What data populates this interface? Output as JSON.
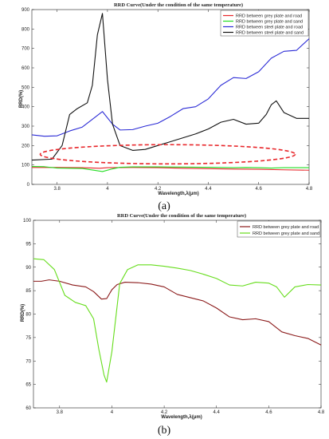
{
  "chart_data": [
    {
      "type": "line",
      "panel_label": "(a)",
      "title": "RRD Curve(Under the condition of the same temperature)",
      "xlabel": "Wavelength,λ(μm)",
      "ylabel": "RRD(%)",
      "xlim": [
        3.7,
        4.8
      ],
      "ylim": [
        0,
        900
      ],
      "xticks": [
        3.8,
        4.0,
        4.2,
        4.4,
        4.6,
        4.8
      ],
      "xtick_labels": [
        "3.8",
        "4",
        "4.2",
        "4.4",
        "4.6",
        "4.8"
      ],
      "yticks": [
        0,
        100,
        200,
        300,
        400,
        500,
        600,
        700,
        800,
        900
      ],
      "legend_position": "top-right",
      "annotation": "red dashed ellipse around the low curves (approx. y 100-200)",
      "series": [
        {
          "name": "RRD between grey plate and road",
          "color": "#e8262a",
          "x": [
            3.7,
            3.8,
            3.9,
            3.97,
            4.0,
            4.1,
            4.2,
            4.3,
            4.4,
            4.5,
            4.6,
            4.7,
            4.8
          ],
          "y": [
            87,
            87,
            86,
            83,
            86,
            87,
            86,
            83,
            81,
            79,
            78,
            75,
            73
          ]
        },
        {
          "name": "RRD between grey plate and sand",
          "color": "#22dd22",
          "x": [
            3.7,
            3.75,
            3.8,
            3.85,
            3.9,
            3.95,
            3.98,
            4.02,
            4.05,
            4.1,
            4.2,
            4.3,
            4.4,
            4.5,
            4.55,
            4.6,
            4.65,
            4.7,
            4.8
          ],
          "y": [
            92,
            91,
            84,
            83,
            82,
            72,
            66,
            80,
            88,
            90,
            90,
            89,
            88,
            86,
            87,
            86,
            84,
            86,
            86
          ]
        },
        {
          "name": "RRD between steel plate and road",
          "color": "#2b2bd6",
          "x": [
            3.7,
            3.75,
            3.8,
            3.85,
            3.9,
            3.95,
            3.98,
            4.02,
            4.05,
            4.1,
            4.15,
            4.2,
            4.25,
            4.3,
            4.35,
            4.4,
            4.45,
            4.5,
            4.55,
            4.6,
            4.65,
            4.7,
            4.75,
            4.8
          ],
          "y": [
            255,
            248,
            250,
            275,
            295,
            345,
            375,
            310,
            280,
            282,
            300,
            315,
            350,
            390,
            400,
            440,
            510,
            550,
            545,
            580,
            650,
            685,
            690,
            750
          ]
        },
        {
          "name": "RRD between steel plate and sand",
          "color": "#111111",
          "x": [
            3.7,
            3.78,
            3.82,
            3.85,
            3.88,
            3.92,
            3.94,
            3.96,
            3.98,
            4.0,
            4.02,
            4.05,
            4.1,
            4.15,
            4.2,
            4.25,
            4.3,
            4.35,
            4.4,
            4.45,
            4.5,
            4.55,
            4.6,
            4.63,
            4.65,
            4.67,
            4.7,
            4.75,
            4.8
          ],
          "y": [
            125,
            130,
            200,
            360,
            390,
            420,
            510,
            770,
            880,
            540,
            310,
            200,
            175,
            180,
            200,
            220,
            240,
            260,
            285,
            320,
            335,
            310,
            315,
            360,
            410,
            430,
            370,
            340,
            340
          ]
        }
      ]
    },
    {
      "type": "line",
      "panel_label": "(b)",
      "title": "RRD Curve(Under the condition of the same temperature)",
      "xlabel": "Wavelength,λ(μm)",
      "ylabel": "RRD(%)",
      "xlim": [
        3.7,
        4.8
      ],
      "ylim": [
        60,
        100
      ],
      "xticks": [
        3.8,
        4.0,
        4.2,
        4.4,
        4.6,
        4.8
      ],
      "xtick_labels": [
        "3.8",
        "4",
        "4.2",
        "4.4",
        "4.6",
        "4.8"
      ],
      "yticks": [
        60,
        65,
        70,
        75,
        80,
        85,
        90,
        95,
        100
      ],
      "legend_position": "top-right",
      "series": [
        {
          "name": "RRD between grey plate and road",
          "color": "#8b1a1a",
          "x": [
            3.7,
            3.73,
            3.76,
            3.8,
            3.85,
            3.9,
            3.93,
            3.96,
            3.98,
            4.0,
            4.02,
            4.05,
            4.1,
            4.15,
            4.2,
            4.25,
            4.3,
            4.35,
            4.4,
            4.45,
            4.5,
            4.55,
            4.6,
            4.65,
            4.7,
            4.75,
            4.8
          ],
          "y": [
            87,
            87,
            87.3,
            87,
            86.2,
            85.8,
            84.8,
            83.2,
            83.3,
            85.2,
            86.3,
            86.8,
            86.7,
            86.4,
            85.8,
            84.2,
            83.5,
            82.8,
            81.3,
            79.4,
            78.8,
            79.0,
            78.4,
            76.2,
            75.4,
            74.8,
            73.4
          ]
        },
        {
          "name": "RRD between grey plate and sand",
          "color": "#66dd1c",
          "x": [
            3.7,
            3.74,
            3.78,
            3.82,
            3.86,
            3.9,
            3.93,
            3.95,
            3.97,
            3.98,
            4.0,
            4.03,
            4.06,
            4.1,
            4.15,
            4.2,
            4.25,
            4.3,
            4.35,
            4.4,
            4.45,
            4.5,
            4.55,
            4.6,
            4.63,
            4.66,
            4.7,
            4.75,
            4.8
          ],
          "y": [
            91.8,
            91.6,
            89.5,
            84.0,
            82.5,
            81.8,
            79.0,
            72.5,
            67.0,
            65.5,
            72.0,
            86.5,
            89.5,
            90.5,
            90.5,
            90.2,
            89.8,
            89.3,
            88.5,
            87.6,
            86.2,
            86.0,
            86.8,
            86.6,
            85.8,
            83.6,
            85.8,
            86.3,
            86.2
          ]
        }
      ]
    }
  ]
}
